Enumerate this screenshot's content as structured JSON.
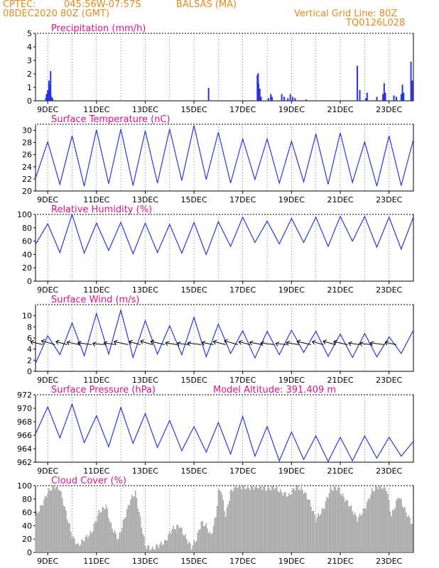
{
  "header": {
    "source": "CPTEC:",
    "coords": "045:56W-07:57S",
    "location": "BALSAS (MA)",
    "run": "08DEC2020 80Z (GMT)",
    "grid_note": "Vertical Grid Line: 80Z",
    "model": "TQ0126L028"
  },
  "x_labels": [
    "9DEC",
    "11DEC",
    "13DEC",
    "15DEC",
    "17DEC",
    "19DEC",
    "21DEC",
    "23DEC"
  ],
  "colors": {
    "header": "#e88a1a",
    "title": "#e0108c",
    "line": "#2b36e8",
    "precip": "#2633e0",
    "cloud": "#a9a9a9"
  },
  "chart_data": [
    {
      "type": "bar",
      "title": "Precipitation (mm/h)",
      "ylim": [
        0,
        5
      ],
      "yticks": [
        0,
        1,
        2,
        3,
        4,
        5
      ],
      "x_range_days": [
        0,
        15.5
      ],
      "points": [
        [
          0.42,
          0.2
        ],
        [
          0.45,
          0.5
        ],
        [
          0.5,
          0.8
        ],
        [
          0.52,
          0.6
        ],
        [
          0.55,
          1.5
        ],
        [
          0.58,
          1.2
        ],
        [
          0.6,
          0.9
        ],
        [
          0.62,
          2.2
        ],
        [
          0.65,
          0.3
        ],
        [
          0.7,
          0.2
        ],
        [
          7.1,
          0.95
        ],
        [
          9.1,
          1.9
        ],
        [
          9.13,
          2.05
        ],
        [
          9.15,
          1.3
        ],
        [
          9.2,
          0.9
        ],
        [
          9.25,
          0.3
        ],
        [
          9.55,
          0.2
        ],
        [
          9.65,
          0.5
        ],
        [
          9.7,
          0.3
        ],
        [
          10.1,
          0.5
        ],
        [
          10.2,
          0.3
        ],
        [
          10.35,
          0.2
        ],
        [
          10.45,
          0.5
        ],
        [
          10.55,
          0.3
        ],
        [
          10.65,
          0.2
        ],
        [
          11.1,
          0.1
        ],
        [
          13.2,
          2.6
        ],
        [
          13.3,
          0.8
        ],
        [
          13.55,
          0.2
        ],
        [
          13.6,
          0.6
        ],
        [
          14.0,
          0.3
        ],
        [
          14.25,
          0.5
        ],
        [
          14.3,
          1.3
        ],
        [
          14.35,
          0.6
        ],
        [
          14.7,
          0.4
        ],
        [
          14.8,
          0.3
        ],
        [
          15.0,
          0.5
        ],
        [
          15.05,
          1.2
        ],
        [
          15.1,
          0.6
        ],
        [
          15.4,
          2.9
        ],
        [
          15.45,
          1.5
        ]
      ]
    },
    {
      "type": "line",
      "title": "Surface Temperature (nC)",
      "ylim": [
        20,
        31
      ],
      "yticks": [
        20,
        22,
        24,
        26,
        28,
        30
      ],
      "x_range_days": [
        0,
        15.5
      ],
      "daily_max": [
        28.1,
        29.1,
        30.1,
        30.2,
        29.9,
        30.2,
        30.8,
        29.7,
        28.6,
        28.6,
        28.2,
        29.4,
        29.6,
        28.1,
        29.1,
        28.5
      ],
      "daily_min": [
        22.1,
        21.1,
        20.8,
        21.2,
        20.9,
        21.3,
        21.7,
        21.9,
        21.3,
        21.9,
        21.3,
        21.5,
        21.1,
        21.4,
        20.8,
        20.9
      ]
    },
    {
      "type": "line",
      "title": "Relative Humidity (%)",
      "ylim": [
        0,
        100
      ],
      "yticks": [
        0,
        20,
        40,
        60,
        80,
        100
      ],
      "x_range_days": [
        0,
        15.5
      ],
      "daily_max": [
        86,
        100,
        87,
        88,
        87,
        85,
        88,
        89,
        96,
        90,
        94,
        96,
        97,
        97,
        96,
        96
      ],
      "daily_min": [
        55,
        43,
        42,
        46,
        41,
        43,
        42,
        40,
        52,
        58,
        56,
        58,
        52,
        60,
        51,
        48
      ]
    },
    {
      "type": "line",
      "title": "Surface Wind (m/s)",
      "ylim": [
        0,
        12
      ],
      "yticks": [
        0,
        2,
        4,
        6,
        8,
        10
      ],
      "x_range_days": [
        0,
        15.5
      ],
      "daily_max": [
        6.4,
        8.7,
        10.4,
        11.0,
        9.1,
        8.2,
        9.7,
        8.5,
        7.3,
        7.2,
        7.4,
        7.2,
        6.7,
        6.8,
        6.2,
        7.4
      ],
      "daily_min": [
        1.4,
        3.0,
        2.8,
        3.1,
        2.5,
        3.1,
        3.0,
        2.6,
        3.2,
        2.4,
        3.0,
        3.4,
        2.7,
        2.5,
        2.6,
        3.2
      ]
    },
    {
      "type": "line",
      "title": "Surface Pressure (hPa)",
      "subtitle": "Model Altitude: 391.409 m",
      "ylim": [
        962,
        972
      ],
      "yticks": [
        962,
        964,
        966,
        968,
        970,
        972
      ],
      "x_range_days": [
        0,
        15.5
      ],
      "daily_max": [
        970.2,
        970.6,
        968.9,
        970.1,
        969.2,
        968.2,
        967.3,
        967.9,
        968.8,
        967.3,
        966.5,
        965.9,
        965.7,
        965.9,
        965.7,
        965.1
      ],
      "daily_min": [
        966.2,
        965.6,
        964.9,
        964.3,
        964.8,
        964.2,
        963.7,
        963.5,
        963.2,
        962.9,
        962.2,
        962.4,
        962.1,
        962.2,
        962.6,
        962.9
      ]
    },
    {
      "type": "area",
      "title": "Cloud Cover (%)",
      "ylim": [
        0,
        100
      ],
      "yticks": [
        0,
        20,
        40,
        60,
        80,
        100
      ],
      "x_range_days": [
        0,
        15.5
      ],
      "points": [
        [
          0,
          55
        ],
        [
          0.25,
          70
        ],
        [
          0.5,
          90
        ],
        [
          0.75,
          100
        ],
        [
          1.0,
          95
        ],
        [
          1.25,
          60
        ],
        [
          1.5,
          25
        ],
        [
          1.75,
          10
        ],
        [
          2.0,
          20
        ],
        [
          2.3,
          30
        ],
        [
          2.6,
          60
        ],
        [
          2.9,
          70
        ],
        [
          3.1,
          40
        ],
        [
          3.4,
          20
        ],
        [
          3.6,
          45
        ],
        [
          3.9,
          80
        ],
        [
          4.1,
          90
        ],
        [
          4.3,
          50
        ],
        [
          4.5,
          10
        ],
        [
          4.8,
          5
        ],
        [
          5.0,
          10
        ],
        [
          5.3,
          15
        ],
        [
          5.6,
          35
        ],
        [
          5.9,
          40
        ],
        [
          6.2,
          20
        ],
        [
          6.4,
          8
        ],
        [
          6.6,
          20
        ],
        [
          6.8,
          45
        ],
        [
          7.0,
          40
        ],
        [
          7.2,
          25
        ],
        [
          7.4,
          55
        ],
        [
          7.5,
          90
        ],
        [
          7.6,
          95
        ],
        [
          7.8,
          55
        ],
        [
          8.0,
          90
        ],
        [
          8.2,
          100
        ],
        [
          8.5,
          98
        ],
        [
          8.8,
          97
        ],
        [
          9.2,
          99
        ],
        [
          9.5,
          95
        ],
        [
          9.8,
          98
        ],
        [
          10.1,
          90
        ],
        [
          10.4,
          85
        ],
        [
          10.7,
          99
        ],
        [
          11.0,
          92
        ],
        [
          11.2,
          80
        ],
        [
          11.5,
          50
        ],
        [
          11.8,
          65
        ],
        [
          12.1,
          95
        ],
        [
          12.4,
          97
        ],
        [
          12.6,
          85
        ],
        [
          12.9,
          70
        ],
        [
          13.2,
          50
        ],
        [
          13.5,
          65
        ],
        [
          13.8,
          92
        ],
        [
          14.1,
          100
        ],
        [
          14.4,
          95
        ],
        [
          14.6,
          55
        ],
        [
          14.9,
          85
        ],
        [
          15.2,
          60
        ],
        [
          15.5,
          40
        ]
      ]
    }
  ]
}
